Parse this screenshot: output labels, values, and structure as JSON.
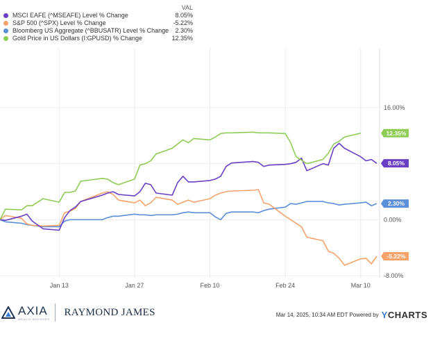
{
  "legend": {
    "header": "VAL",
    "items": [
      {
        "label": "MSCI EAFE (^MSEAFE) Level % Change",
        "value": "8.05%",
        "color": "#6a3ec4"
      },
      {
        "label": "S&P 500 (^SPX) Level % Change",
        "value": "-5.22%",
        "color": "#f5a36a"
      },
      {
        "label": "Bloomberg US Aggregate (^BBUSATR) Level % Change",
        "value": "2.30%",
        "color": "#5b8fd9"
      },
      {
        "label": "Gold Price in US Dollars (I:GPUSD) % Change",
        "value": "12.35%",
        "color": "#8fcc55"
      }
    ]
  },
  "footer": {
    "axia_name": "AXIA",
    "axia_sub": "WEALTH ADVISORS",
    "raymond_james": "RAYMOND JAMES",
    "timestamp": "Mar 14, 2025, 10:34 AM EDT Powered by",
    "ycharts_y": "Y",
    "ycharts_rest": "CHARTS"
  },
  "chart_data": {
    "type": "line",
    "x_tick_labels": [
      "Jan 13",
      "Jan 27",
      "Feb 10",
      "Feb 24",
      "Mar 10"
    ],
    "y_tick_labels": [
      "16.00%",
      "8.00%",
      "0.00%",
      "-8.00%"
    ],
    "ylim": [
      -8,
      16
    ],
    "grid": true,
    "legend_placement": "top-left",
    "end_labels": [
      "12.35%",
      "8.05%",
      "2.30%",
      "-5.22%"
    ],
    "series": [
      {
        "name": "MSCI EAFE (^MSEAFE) Level % Change",
        "color": "#6a3ec4",
        "x": [
          "2025-01-02",
          "2025-01-03",
          "2025-01-06",
          "2025-01-07",
          "2025-01-08",
          "2025-01-10",
          "2025-01-13",
          "2025-01-14",
          "2025-01-15",
          "2025-01-16",
          "2025-01-17",
          "2025-01-21",
          "2025-01-22",
          "2025-01-23",
          "2025-01-24",
          "2025-01-27",
          "2025-01-28",
          "2025-01-29",
          "2025-01-30",
          "2025-01-31",
          "2025-02-03",
          "2025-02-04",
          "2025-02-05",
          "2025-02-06",
          "2025-02-07",
          "2025-02-10",
          "2025-02-11",
          "2025-02-12",
          "2025-02-13",
          "2025-02-14",
          "2025-02-18",
          "2025-02-19",
          "2025-02-20",
          "2025-02-21",
          "2025-02-24",
          "2025-02-25",
          "2025-02-26",
          "2025-02-27",
          "2025-02-28",
          "2025-03-03",
          "2025-03-04",
          "2025-03-05",
          "2025-03-06",
          "2025-03-07",
          "2025-03-10",
          "2025-03-11",
          "2025-03-12",
          "2025-03-13"
        ],
        "values": [
          0.0,
          -0.1,
          0.5,
          0.8,
          -0.2,
          -1.3,
          -1.5,
          0.3,
          1.3,
          1.8,
          2.6,
          3.5,
          3.8,
          4.0,
          3.6,
          3.4,
          4.0,
          5.2,
          5.0,
          3.8,
          3.5,
          5.3,
          6.2,
          5.4,
          5.4,
          5.6,
          5.8,
          6.2,
          7.6,
          8.1,
          8.3,
          8.2,
          7.6,
          7.8,
          7.9,
          8.0,
          8.2,
          8.8,
          7.0,
          8.0,
          7.8,
          10.2,
          10.9,
          10.2,
          9.0,
          8.4,
          8.6,
          8.05
        ]
      },
      {
        "name": "S&P 500 (^SPX) Level % Change",
        "color": "#f5a36a",
        "x": [
          "2025-01-02",
          "2025-01-03",
          "2025-01-06",
          "2025-01-07",
          "2025-01-08",
          "2025-01-10",
          "2025-01-13",
          "2025-01-14",
          "2025-01-15",
          "2025-01-16",
          "2025-01-17",
          "2025-01-21",
          "2025-01-22",
          "2025-01-23",
          "2025-01-24",
          "2025-01-27",
          "2025-01-28",
          "2025-01-29",
          "2025-01-30",
          "2025-01-31",
          "2025-02-03",
          "2025-02-04",
          "2025-02-05",
          "2025-02-06",
          "2025-02-07",
          "2025-02-10",
          "2025-02-11",
          "2025-02-12",
          "2025-02-13",
          "2025-02-14",
          "2025-02-18",
          "2025-02-19",
          "2025-02-20",
          "2025-02-21",
          "2025-02-24",
          "2025-02-25",
          "2025-02-26",
          "2025-02-27",
          "2025-02-28",
          "2025-03-03",
          "2025-03-04",
          "2025-03-05",
          "2025-03-06",
          "2025-03-07",
          "2025-03-10",
          "2025-03-11",
          "2025-03-12",
          "2025-03-13"
        ],
        "values": [
          0.0,
          0.6,
          0.2,
          -0.6,
          -0.8,
          -0.9,
          -0.8,
          1.0,
          1.2,
          1.6,
          2.6,
          3.8,
          4.0,
          3.6,
          2.8,
          2.4,
          2.8,
          2.0,
          2.4,
          3.2,
          2.8,
          2.2,
          2.5,
          2.8,
          2.5,
          3.0,
          3.5,
          3.8,
          4.0,
          4.1,
          4.2,
          4.3,
          2.4,
          2.2,
          0.5,
          0.0,
          -0.5,
          -1.0,
          -2.5,
          -3.0,
          -4.5,
          -4.8,
          -5.5,
          -6.5,
          -5.6,
          -5.5,
          -6.3,
          -5.22
        ]
      },
      {
        "name": "Bloomberg US Aggregate (^BBUSATR) Level % Change",
        "color": "#5b8fd9",
        "x": [
          "2025-01-02",
          "2025-01-03",
          "2025-01-06",
          "2025-01-07",
          "2025-01-08",
          "2025-01-10",
          "2025-01-13",
          "2025-01-14",
          "2025-01-15",
          "2025-01-16",
          "2025-01-17",
          "2025-01-21",
          "2025-01-22",
          "2025-01-23",
          "2025-01-24",
          "2025-01-27",
          "2025-01-28",
          "2025-01-29",
          "2025-01-30",
          "2025-01-31",
          "2025-02-03",
          "2025-02-04",
          "2025-02-05",
          "2025-02-06",
          "2025-02-07",
          "2025-02-10",
          "2025-02-11",
          "2025-02-12",
          "2025-02-13",
          "2025-02-14",
          "2025-02-18",
          "2025-02-19",
          "2025-02-20",
          "2025-02-21",
          "2025-02-24",
          "2025-02-25",
          "2025-02-26",
          "2025-02-27",
          "2025-02-28",
          "2025-03-03",
          "2025-03-04",
          "2025-03-05",
          "2025-03-06",
          "2025-03-07",
          "2025-03-10",
          "2025-03-11",
          "2025-03-12",
          "2025-03-13"
        ],
        "values": [
          0.0,
          -0.3,
          -0.5,
          -0.7,
          -0.8,
          -1.0,
          -1.0,
          -0.2,
          0.0,
          0.0,
          0.0,
          0.0,
          0.3,
          0.5,
          0.5,
          0.8,
          0.7,
          0.7,
          0.6,
          0.7,
          0.7,
          0.8,
          1.0,
          1.1,
          1.0,
          1.0,
          0.4,
          0.0,
          0.9,
          1.1,
          1.1,
          1.0,
          1.3,
          1.5,
          1.8,
          2.3,
          2.2,
          2.4,
          2.6,
          2.6,
          2.4,
          2.3,
          2.1,
          2.2,
          2.4,
          2.5,
          2.0,
          2.3
        ]
      },
      {
        "name": "Gold Price in US Dollars (I:GPUSD) % Change",
        "color": "#8fcc55",
        "x": [
          "2025-01-02",
          "2025-01-03",
          "2025-01-06",
          "2025-01-07",
          "2025-01-08",
          "2025-01-10",
          "2025-01-13",
          "2025-01-14",
          "2025-01-15",
          "2025-01-16",
          "2025-01-17",
          "2025-01-21",
          "2025-01-22",
          "2025-01-23",
          "2025-01-24",
          "2025-01-27",
          "2025-01-28",
          "2025-01-29",
          "2025-01-30",
          "2025-01-31",
          "2025-02-03",
          "2025-02-04",
          "2025-02-05",
          "2025-02-06",
          "2025-02-07",
          "2025-02-10",
          "2025-02-11",
          "2025-02-12",
          "2025-02-13",
          "2025-02-14",
          "2025-02-18",
          "2025-02-19",
          "2025-02-20",
          "2025-02-21",
          "2025-02-24",
          "2025-02-25",
          "2025-02-26",
          "2025-02-27",
          "2025-02-28",
          "2025-03-03",
          "2025-03-04",
          "2025-03-05",
          "2025-03-06",
          "2025-03-07",
          "2025-03-10"
        ],
        "values": [
          0.0,
          1.5,
          1.4,
          2.0,
          2.0,
          3.0,
          2.5,
          3.9,
          3.9,
          4.1,
          5.5,
          5.9,
          5.8,
          5.3,
          5.0,
          5.8,
          7.8,
          8.0,
          8.4,
          9.4,
          10.2,
          10.8,
          11.4,
          11.0,
          11.6,
          11.4,
          11.8,
          12.3,
          12.4,
          12.4,
          12.5,
          12.4,
          12.4,
          12.4,
          12.3,
          11.0,
          9.0,
          8.5,
          8.0,
          8.6,
          9.5,
          10.8,
          11.2,
          11.8,
          12.35
        ]
      }
    ]
  }
}
